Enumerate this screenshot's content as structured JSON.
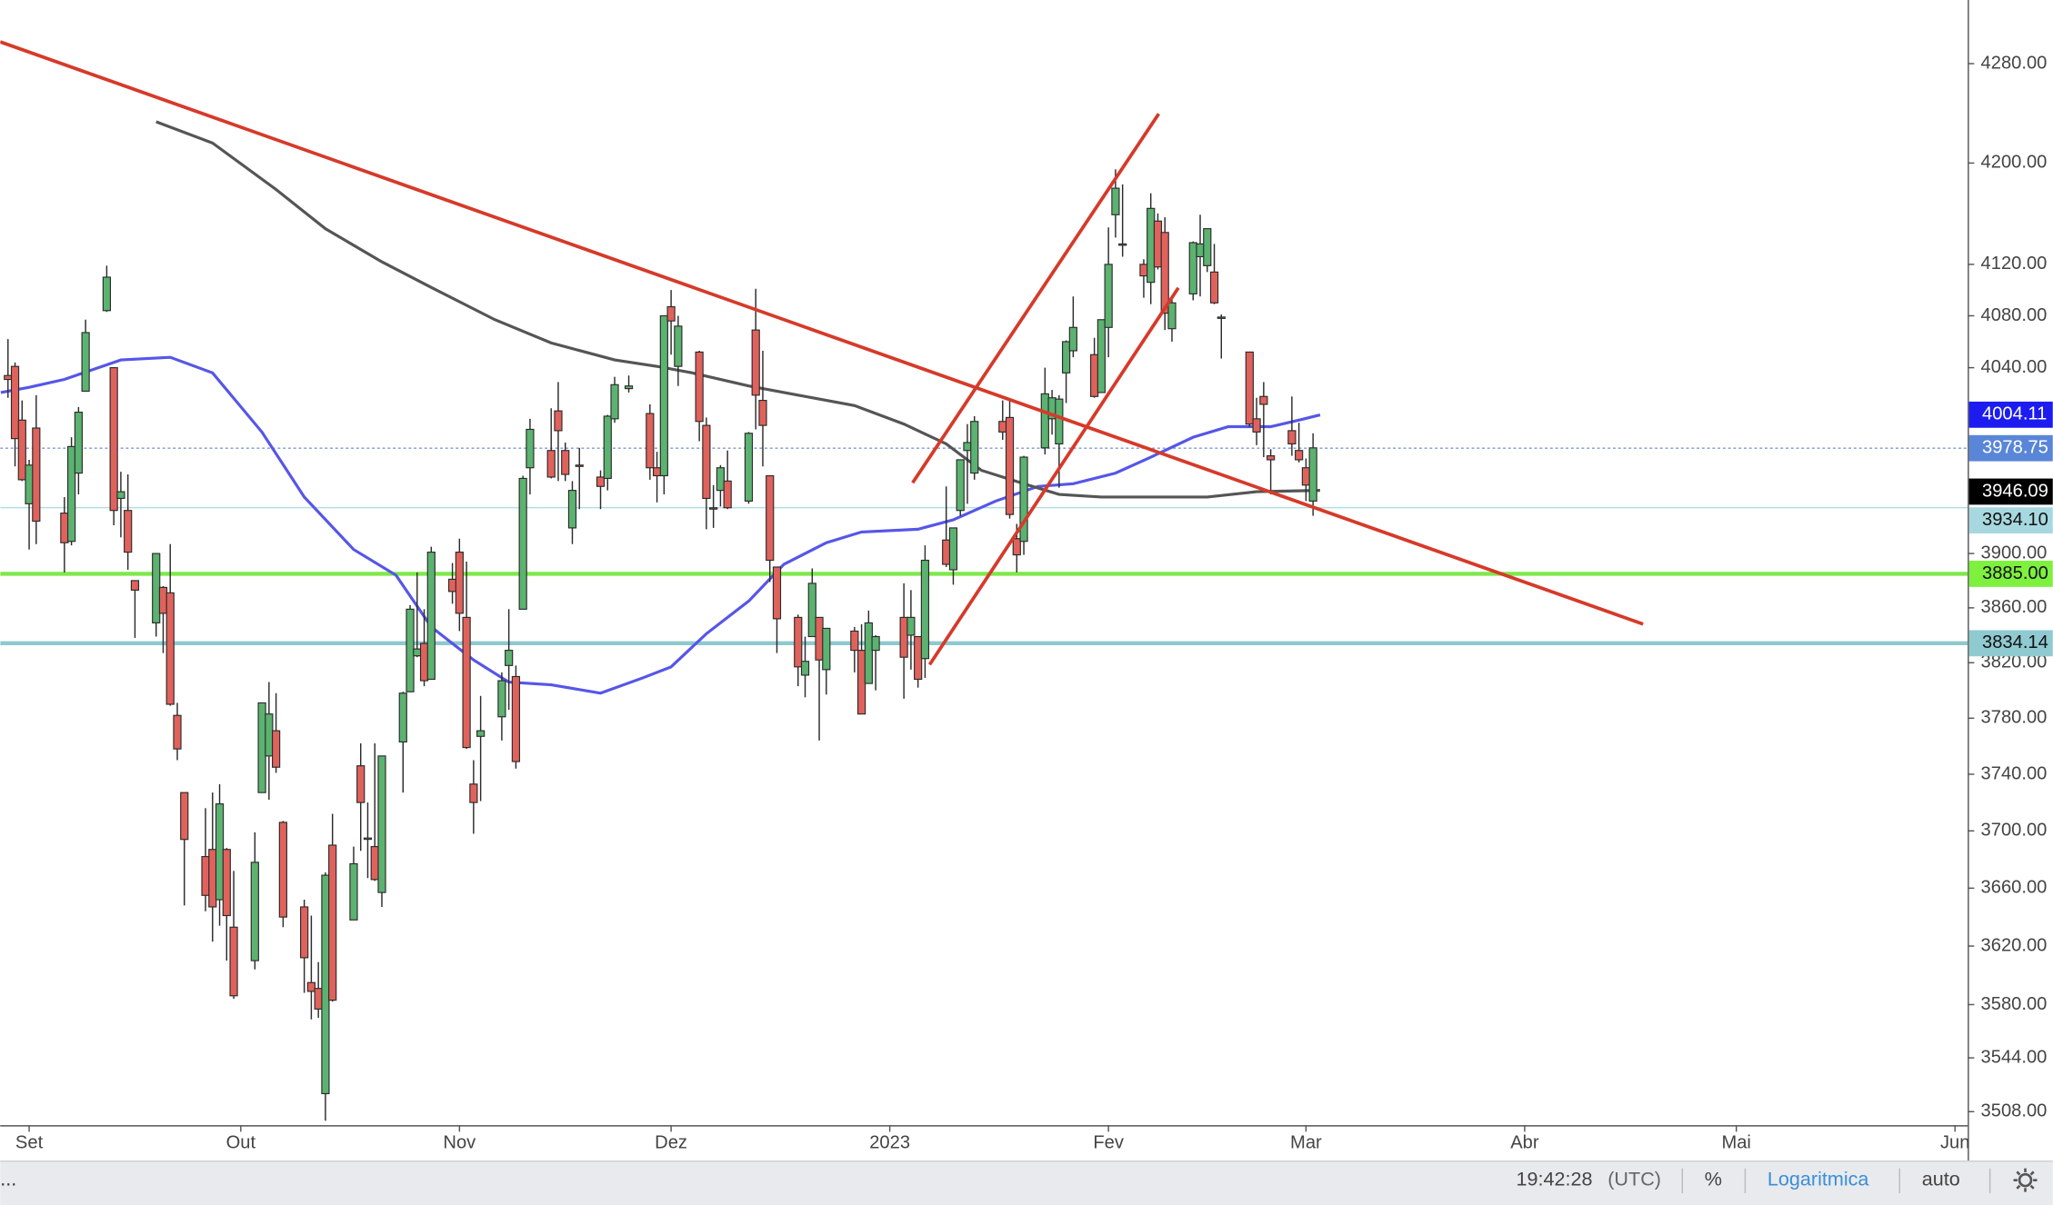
{
  "chart_data": {
    "type": "candlestick",
    "log_scale": true,
    "up_color": "#5cb270",
    "down_color": "#e0625c",
    "outline_color": "#2b2b2b",
    "xlim": [
      -4.1,
      274.8
    ],
    "ylim": [
      3499,
      4332
    ],
    "xticks": [
      {
        "value": 0,
        "label": "Set"
      },
      {
        "value": 30,
        "label": "Out"
      },
      {
        "value": 61,
        "label": "Nov"
      },
      {
        "value": 91,
        "label": "Dez"
      },
      {
        "value": 122,
        "label": "2023"
      },
      {
        "value": 153,
        "label": "Fev"
      },
      {
        "value": 181,
        "label": "Mar"
      },
      {
        "value": 212,
        "label": "Abr"
      },
      {
        "value": 242,
        "label": "Mai"
      },
      {
        "value": 273,
        "label": "Jun"
      }
    ],
    "yticks": [
      {
        "value": 4280,
        "label": "4280.00"
      },
      {
        "value": 4200,
        "label": "4200.00"
      },
      {
        "value": 4120,
        "label": "4120.00"
      },
      {
        "value": 4080,
        "label": "4080.00"
      },
      {
        "value": 4040,
        "label": "4040.00"
      },
      {
        "value": 3900,
        "label": "3900.00"
      },
      {
        "value": 3860,
        "label": "3860.00"
      },
      {
        "value": 3820,
        "label": "3820.00"
      },
      {
        "value": 3780,
        "label": "3780.00"
      },
      {
        "value": 3740,
        "label": "3740.00"
      },
      {
        "value": 3700,
        "label": "3700.00"
      },
      {
        "value": 3660,
        "label": "3660.00"
      },
      {
        "value": 3620,
        "label": "3620.00"
      },
      {
        "value": 3580,
        "label": "3580.00"
      },
      {
        "value": 3544,
        "label": "3544.00"
      },
      {
        "value": 3508,
        "label": "3508.00"
      }
    ],
    "x": [
      -3,
      -2,
      -1,
      0,
      1,
      5,
      6,
      7,
      8,
      11,
      12,
      13,
      14,
      15,
      18,
      19,
      20,
      21,
      22,
      25,
      26,
      27,
      28,
      29,
      32,
      33,
      34,
      35,
      36,
      39,
      40,
      41,
      42,
      43,
      46,
      47,
      48,
      49,
      50,
      53,
      54,
      55,
      56,
      57,
      60,
      61,
      62,
      63,
      64,
      67,
      68,
      69,
      70,
      71,
      74,
      75,
      76,
      77,
      78,
      81,
      82,
      83,
      85,
      88,
      89,
      90,
      91,
      92,
      95,
      96,
      97,
      98,
      99,
      102,
      103,
      104,
      105,
      106,
      109,
      110,
      111,
      112,
      113,
      117,
      118,
      119,
      120,
      124,
      125,
      126,
      127,
      130,
      131,
      132,
      133,
      134,
      138,
      139,
      140,
      141,
      144,
      145,
      146,
      147,
      148,
      151,
      152,
      153,
      154,
      155,
      158,
      159,
      160,
      161,
      162,
      165,
      166,
      167,
      168,
      169,
      173,
      174,
      175,
      176,
      179,
      180,
      181,
      182
    ],
    "open": [
      4034,
      4041,
      4000,
      3937,
      3994,
      3930,
      3909,
      3960,
      4022,
      4084,
      4040,
      3941,
      3932,
      3880,
      3849,
      3875,
      3871,
      3782,
      3727,
      3682,
      3687,
      3652,
      3687,
      3633,
      3610,
      3727,
      3753,
      3771,
      3706,
      3647,
      3595,
      3591,
      3520,
      3690,
      3638,
      3746,
      3695,
      3689,
      3657,
      3763,
      3799,
      3825,
      3834,
      3808,
      3881,
      3901,
      3853,
      3733,
      3767,
      3781,
      3818,
      3810,
      3859,
      3964,
      3977,
      4007,
      3977,
      3919,
      3966,
      3957,
      3956,
      4001,
      4024,
      4005,
      3964,
      3958,
      4087,
      4041,
      4052,
      3996,
      3934,
      3947,
      3954,
      3939,
      4069,
      4015,
      3958,
      3890,
      3853,
      3811,
      3839,
      3853,
      3815,
      3843,
      3829,
      3805,
      3829,
      3853,
      3840,
      3839,
      3823,
      3910,
      3888,
      3932,
      3977,
      3960,
      3999,
      4002,
      3911,
      3909,
      3979,
      4001,
      3982,
      4036,
      4053,
      4050,
      4021,
      4071,
      4159,
      4136,
      4120,
      4106,
      4154,
      4145,
      4070,
      4097,
      4126,
      4119,
      4114,
      4078,
      4052,
      4001,
      4018,
      3973,
      3992,
      3977,
      3964,
      3939
    ],
    "high": [
      4062,
      4044,
      4015,
      3970,
      4019,
      3942,
      3987,
      4010,
      4077,
      4119,
      4040,
      3961,
      3959,
      3880,
      3900,
      3876,
      3907,
      3791,
      3727,
      3716,
      3727,
      3733,
      3688,
      3672,
      3699,
      3791,
      3806,
      3798,
      3707,
      3652,
      3641,
      3609,
      3671,
      3712,
      3689,
      3762,
      3720,
      3762,
      3753,
      3799,
      3862,
      3886,
      3859,
      3905,
      3893,
      3911,
      3894,
      3750,
      3796,
      3813,
      3859,
      3818,
      3958,
      4001,
      4009,
      4029,
      3983,
      3954,
      3979,
      3962,
      4004,
      4033,
      4034,
      4012,
      3976,
      4080,
      4100,
      4080,
      4053,
      4002,
      3951,
      3966,
      3977,
      3991,
      4101,
      4053,
      3958,
      3890,
      3855,
      3839,
      3889,
      3853,
      3845,
      3846,
      3848,
      3858,
      3840,
      3878,
      3873,
      3839,
      3906,
      3950,
      3919,
      3970,
      3997,
      4003,
      4015,
      4015,
      3922,
      3973,
      4040,
      4023,
      4019,
      4061,
      4095,
      4063,
      4077,
      4149,
      4195,
      4183,
      4124,
      4176,
      4160,
      4157,
      4094,
      4138,
      4159,
      4148,
      4136,
      4081,
      4052,
      4017,
      4029,
      3978,
      4018,
      3998,
      3971,
      3990
    ],
    "low": [
      4017,
      3965,
      3954,
      3903,
      3907,
      3886,
      3906,
      3944,
      4022,
      4083,
      3921,
      3912,
      3888,
      3838,
      3839,
      3827,
      3789,
      3750,
      3648,
      3644,
      3623,
      3634,
      3610,
      3584,
      3604,
      3727,
      3722,
      3741,
      3633,
      3588,
      3570,
      3571,
      3502,
      3582,
      3638,
      3686,
      3667,
      3665,
      3647,
      3727,
      3799,
      3824,
      3803,
      3808,
      3863,
      3843,
      3758,
      3698,
      3721,
      3764,
      3786,
      3744,
      3859,
      3944,
      3956,
      3954,
      3954,
      3907,
      3933,
      3933,
      3947,
      3998,
      4021,
      3955,
      3938,
      3944,
      4050,
      4026,
      3984,
      3918,
      3919,
      3935,
      3933,
      3937,
      3993,
      3965,
      3879,
      3827,
      3803,
      3795,
      3839,
      3764,
      3797,
      3813,
      3783,
      3805,
      3800,
      3794,
      3815,
      3802,
      3809,
      3890,
      3877,
      3928,
      3937,
      3955,
      3985,
      3926,
      3886,
      3899,
      3974,
      3989,
      3949,
      4013,
      4048,
      4017,
      4021,
      4048,
      4141,
      4126,
      4094,
      4089,
      4116,
      4069,
      4060,
      4092,
      4095,
      4114,
      4089,
      4047,
      3995,
      3981,
      3972,
      3944,
      3973,
      3968,
      3939,
      3928
    ],
    "close": [
      4031,
      3986,
      3955,
      3966,
      3924,
      3908,
      3980,
      4006,
      4067,
      4110,
      3932,
      3946,
      3901,
      3873,
      3900,
      3856,
      3790,
      3758,
      3694,
      3655,
      3647,
      3719,
      3641,
      3586,
      3678,
      3791,
      3783,
      3745,
      3640,
      3612,
      3589,
      3577,
      3669,
      3583,
      3677,
      3720,
      3695,
      3666,
      3753,
      3798,
      3859,
      3830,
      3807,
      3901,
      3872,
      3856,
      3759,
      3720,
      3771,
      3807,
      3829,
      3749,
      3956,
      3993,
      3957,
      3992,
      3959,
      3947,
      3965,
      3950,
      4003,
      4027,
      4026,
      3964,
      3958,
      4080,
      4076,
      4072,
      3999,
      3941,
      3933,
      3964,
      3934,
      3990,
      4019,
      3996,
      3895,
      3852,
      3817,
      3821,
      3878,
      3822,
      3845,
      3829,
      3783,
      3849,
      3839,
      3824,
      3853,
      3808,
      3895,
      3892,
      3919,
      3970,
      3983,
      3999,
      3991,
      3929,
      3899,
      3972,
      4020,
      4017,
      4016,
      4060,
      4071,
      4018,
      4077,
      4120,
      4180,
      4136,
      4111,
      4164,
      4118,
      4082,
      4090,
      4137,
      4136,
      4148,
      4090,
      4079,
      3997,
      3991,
      4012,
      3970,
      3982,
      3970,
      3951,
      3979
    ],
    "moving_averages": [
      {
        "color": "#5656e8",
        "x": [
          -4,
          0,
          5,
          13,
          20,
          26,
          33,
          39,
          46,
          52,
          57,
          63,
          68,
          74,
          81,
          87,
          91,
          96,
          102,
          107,
          113,
          118,
          126,
          131,
          137,
          143,
          148,
          154,
          159,
          165,
          170,
          176,
          180,
          183
        ],
        "values": [
          4021,
          4025,
          4031,
          4046,
          4048,
          4036,
          3991,
          3942,
          3903,
          3884,
          3846,
          3822,
          3806,
          3804,
          3798,
          3809,
          3817,
          3841,
          3865,
          3892,
          3908,
          3916,
          3918,
          3925,
          3939,
          3950,
          3952,
          3960,
          3972,
          3987,
          3995,
          3995,
          4000,
          4004
        ]
      },
      {
        "color": "#555555",
        "x": [
          18,
          26,
          35,
          42,
          50,
          57,
          66,
          74,
          83,
          89,
          94,
          102,
          109,
          117,
          124,
          130,
          135,
          141,
          146,
          152,
          159,
          167,
          174,
          183
        ],
        "values": [
          4233,
          4216,
          4179,
          4148,
          4122,
          4102,
          4077,
          4059,
          4046,
          4041,
          4036,
          4026,
          4019,
          4011,
          3997,
          3982,
          3962,
          3952,
          3944,
          3942,
          3942,
          3942,
          3946,
          3947
        ]
      }
    ],
    "price_labels": [
      {
        "value": 4004.11,
        "label": "4004.11",
        "color": "#1c1cf0",
        "text_color": "#ffffff"
      },
      {
        "value": 3978.75,
        "label": "3978.75",
        "color": "#5a86d8",
        "text_color": "#ffffff",
        "line": "dotted",
        "line_color": "#7a98d8"
      },
      {
        "value": 3946.09,
        "label": "3946.09",
        "color": "#000000",
        "text_color": "#ffffff"
      },
      {
        "value": 3934.1,
        "label": "3934.10",
        "color": "#a7d8df",
        "text_color": "#111111",
        "line": "thin",
        "line_color": "#b5dde3"
      },
      {
        "value": 3885,
        "label": "3885.00",
        "color": "#7ef03e",
        "text_color": "#111111",
        "line": "thick",
        "line_color": "#7ee84a"
      },
      {
        "value": 3834.14,
        "label": "3834.14",
        "color": "#8fcad0",
        "text_color": "#111111",
        "line": "thick",
        "line_color": "#8ec9cf"
      }
    ]
  },
  "toolbar": {
    "menu": "...",
    "time": "19:42:28",
    "timezone": "(UTC)",
    "percent": "%",
    "scale": "Logaritmica",
    "auto": "auto"
  }
}
